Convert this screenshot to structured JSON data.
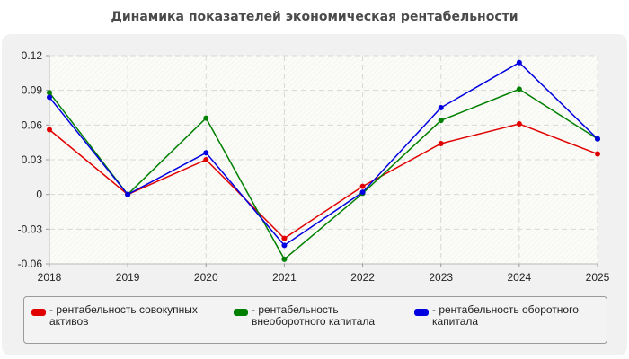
{
  "chart_data": {
    "type": "line",
    "title": "Динамика показателей экономическая рентабельности",
    "xlabel": "",
    "ylabel": "",
    "categories": [
      "2018",
      "2019",
      "2020",
      "2021",
      "2022",
      "2023",
      "2024",
      "2025"
    ],
    "ylim": [
      -0.06,
      0.12
    ],
    "yticks": [
      -0.06,
      -0.03,
      0,
      0.03,
      0.06,
      0.09,
      0.12
    ],
    "ytick_labels": [
      "-0.06",
      "-0.03",
      "0",
      "0.03",
      "0.06",
      "0.09",
      "0.12"
    ],
    "grid": true,
    "legend_position": "bottom",
    "series": [
      {
        "name": "- рентабельность совокупных активов",
        "color": "#e00000",
        "values": [
          0.056,
          0.0,
          0.03,
          -0.038,
          0.007,
          0.044,
          0.061,
          0.035
        ]
      },
      {
        "name": "- рентабельность внеоборотного капитала",
        "color": "#008000",
        "values": [
          0.088,
          0.0,
          0.066,
          -0.056,
          0.001,
          0.064,
          0.091,
          0.048
        ]
      },
      {
        "name": "- рентабельность оборотного капитала",
        "color": "#0000e0",
        "values": [
          0.084,
          0.0,
          0.036,
          -0.044,
          0.002,
          0.075,
          0.114,
          0.048
        ]
      }
    ]
  }
}
